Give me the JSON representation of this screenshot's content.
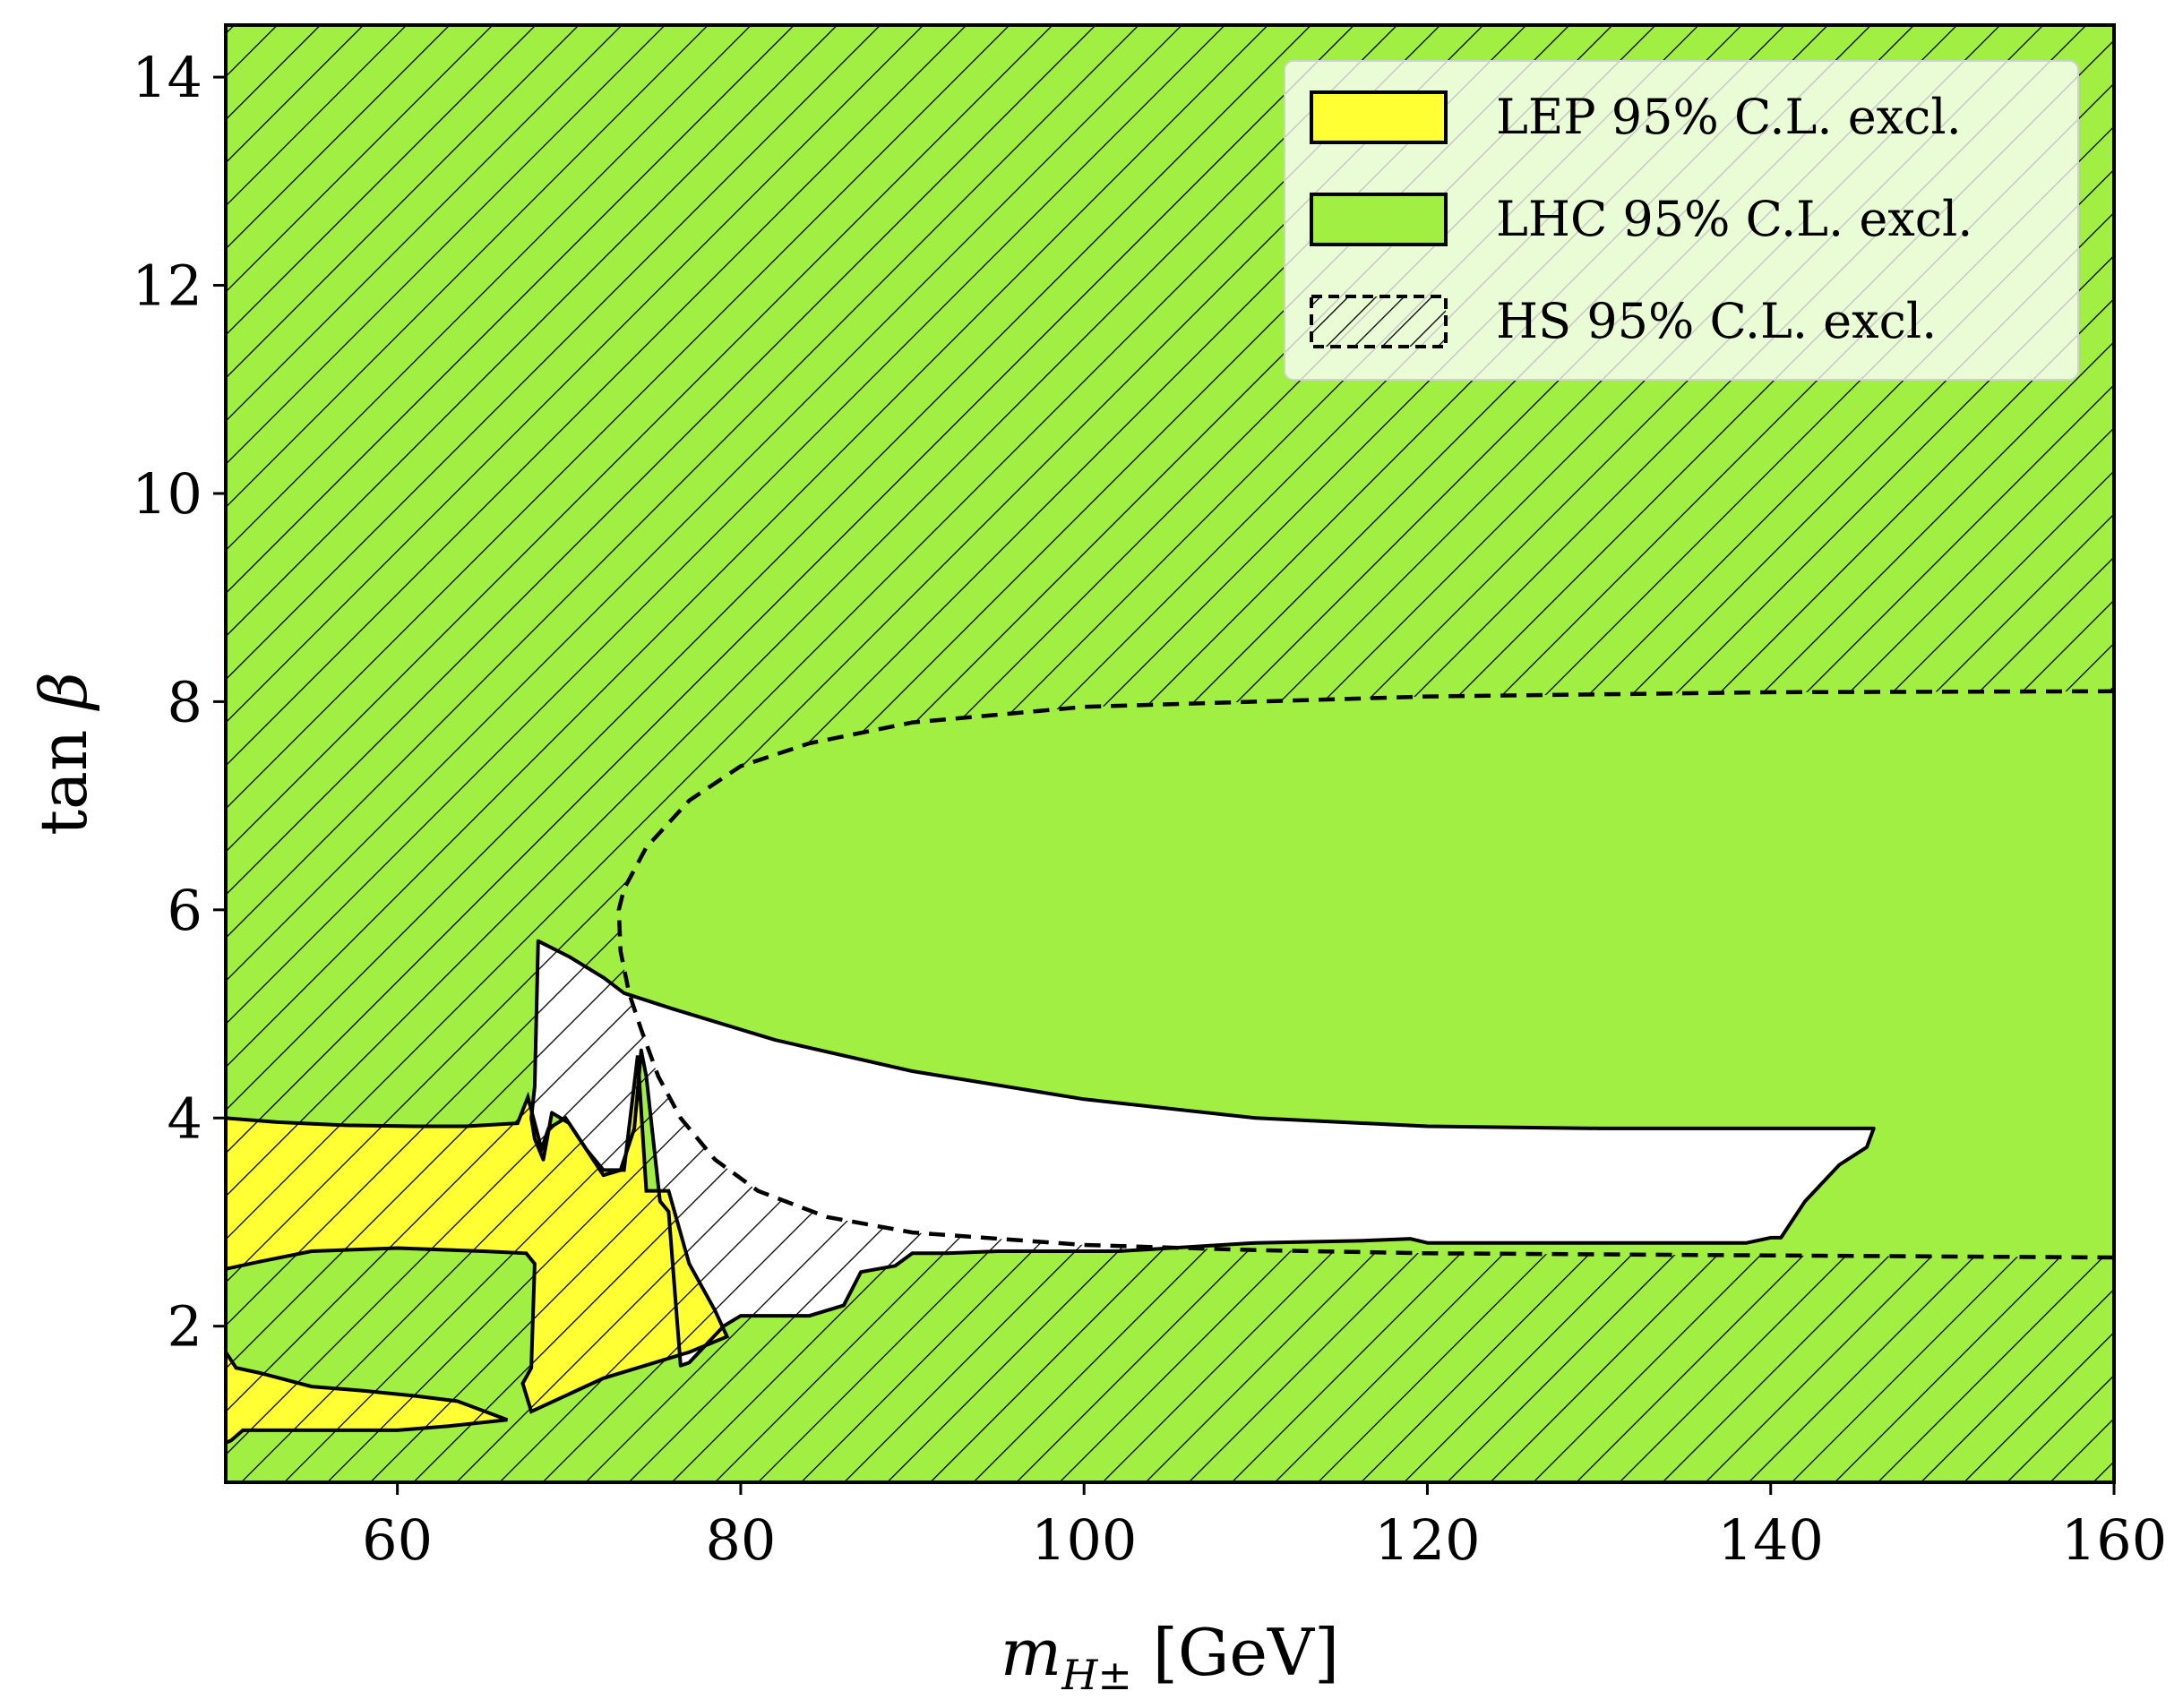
{
  "chart_data": {
    "type": "area",
    "xlabel_main": "m",
    "xlabel_sub": "H±",
    "xlabel_unit": "[GeV]",
    "ylabel_main": "tan",
    "ylabel_symbol": "β",
    "xlim": [
      50,
      160
    ],
    "ylim": [
      0.5,
      14.5
    ],
    "xticks": [
      60,
      80,
      100,
      120,
      140,
      160
    ],
    "yticks": [
      2,
      4,
      6,
      8,
      10,
      12,
      14
    ],
    "grid": false,
    "legend_position": "top-right",
    "colors": {
      "lep": "#ffff33",
      "lhc": "#a1ef42",
      "hs_hatch": "#000000"
    },
    "legend": [
      {
        "label": "LEP 95% C.L. excl.",
        "style": "lep"
      },
      {
        "label": "LHC 95% C.L. excl.",
        "style": "lhc"
      },
      {
        "label": "HS 95% C.L. excl.",
        "style": "hs"
      }
    ],
    "regions": {
      "hs_allowed_boundary": [
        [
          160,
          8.1
        ],
        [
          140,
          8.09
        ],
        [
          120,
          8.05
        ],
        [
          100,
          7.95
        ],
        [
          90,
          7.8
        ],
        [
          84,
          7.6
        ],
        [
          80,
          7.38
        ],
        [
          77,
          7.05
        ],
        [
          74.5,
          6.6
        ],
        [
          73.2,
          6.2
        ],
        [
          72.9,
          6.0
        ],
        [
          73.0,
          5.6
        ],
        [
          73.5,
          5.2
        ],
        [
          74.2,
          4.85
        ],
        [
          75.2,
          4.4
        ],
        [
          76.5,
          4.0
        ],
        [
          78.5,
          3.6
        ],
        [
          81,
          3.3
        ],
        [
          85,
          3.05
        ],
        [
          90,
          2.9
        ],
        [
          100,
          2.78
        ],
        [
          110,
          2.73
        ],
        [
          120,
          2.7
        ],
        [
          140,
          2.68
        ],
        [
          160,
          2.66
        ]
      ],
      "lhc_allowed_upper": [
        [
          73.2,
          5.2
        ],
        [
          76,
          5.05
        ],
        [
          82,
          4.75
        ],
        [
          90,
          4.45
        ],
        [
          100,
          4.18
        ],
        [
          110,
          4.0
        ],
        [
          120,
          3.92
        ],
        [
          130,
          3.9
        ],
        [
          146,
          3.9
        ]
      ],
      "lhc_allowed_lower_right": [
        [
          146,
          3.9
        ],
        [
          145.6,
          3.72
        ],
        [
          144,
          3.55
        ],
        [
          142,
          3.2
        ],
        [
          140.6,
          2.85
        ],
        [
          140,
          2.85
        ],
        [
          138.6,
          2.8
        ],
        [
          130,
          2.8
        ],
        [
          120,
          2.8
        ],
        [
          119,
          2.84
        ],
        [
          116,
          2.82
        ],
        [
          110,
          2.8
        ],
        [
          102,
          2.72
        ],
        [
          95,
          2.72
        ],
        [
          92,
          2.7
        ],
        [
          90,
          2.7
        ]
      ],
      "lhc_allowed_lower_left": [
        [
          90,
          2.7
        ],
        [
          89,
          2.58
        ],
        [
          87,
          2.52
        ],
        [
          86,
          2.2
        ],
        [
          84,
          2.1
        ],
        [
          80,
          2.1
        ],
        [
          79,
          2.0
        ],
        [
          77,
          1.65
        ],
        [
          76.5,
          1.62
        ],
        [
          75.8,
          3.1
        ],
        [
          75.3,
          3.2
        ],
        [
          74.5,
          4.4
        ],
        [
          74.2,
          4.65
        ],
        [
          73.8,
          3.9
        ],
        [
          73,
          3.5
        ],
        [
          72,
          3.45
        ],
        [
          70,
          3.95
        ],
        [
          69,
          4.05
        ],
        [
          68.5,
          3.6
        ],
        [
          68,
          3.8
        ],
        [
          67.8,
          4.0
        ],
        [
          68,
          4.3
        ],
        [
          68.2,
          5.7
        ],
        [
          70,
          5.55
        ],
        [
          72,
          5.35
        ],
        [
          73.2,
          5.2
        ]
      ],
      "lep_excluded_left": [
        [
          50,
          4.0
        ],
        [
          53,
          3.96
        ],
        [
          57,
          3.93
        ],
        [
          61,
          3.92
        ],
        [
          64,
          3.92
        ],
        [
          67,
          3.95
        ],
        [
          67.6,
          4.2
        ],
        [
          68.4,
          3.7
        ],
        [
          68.8,
          3.9
        ],
        [
          69.8,
          4.0
        ],
        [
          71,
          3.7
        ],
        [
          72,
          3.5
        ],
        [
          73.2,
          3.5
        ],
        [
          74,
          4.6
        ],
        [
          74.5,
          3.3
        ],
        [
          75.8,
          3.3
        ],
        [
          77,
          2.6
        ],
        [
          78.5,
          2.15
        ],
        [
          79.2,
          1.9
        ],
        [
          77,
          1.75
        ],
        [
          72,
          1.5
        ],
        [
          67.8,
          1.18
        ],
        [
          67.3,
          1.45
        ],
        [
          67.8,
          1.6
        ],
        [
          68,
          2.6
        ],
        [
          67.5,
          2.7
        ],
        [
          65,
          2.72
        ],
        [
          60,
          2.75
        ],
        [
          55,
          2.72
        ],
        [
          52,
          2.62
        ],
        [
          50,
          2.55
        ]
      ],
      "lep_excluded_small": [
        [
          50,
          1.75
        ],
        [
          50.6,
          1.6
        ],
        [
          52,
          1.55
        ],
        [
          55,
          1.42
        ],
        [
          58,
          1.38
        ],
        [
          61,
          1.33
        ],
        [
          63.5,
          1.28
        ],
        [
          66.4,
          1.1
        ],
        [
          63,
          1.04
        ],
        [
          60,
          1.0
        ],
        [
          55,
          1.0
        ],
        [
          51,
          1.0
        ],
        [
          50.3,
          0.9
        ],
        [
          50,
          0.88
        ]
      ]
    }
  }
}
